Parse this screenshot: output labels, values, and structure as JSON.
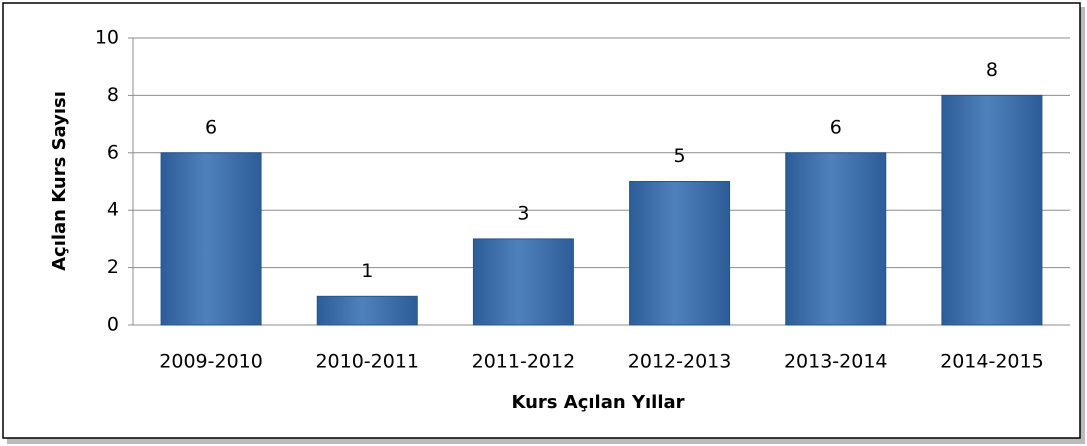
{
  "chart_data": {
    "type": "bar",
    "x_label": "Kurs Açılan Yıllar",
    "y_label": "Açılan Kurs Sayısı",
    "categories": [
      "2009-2010",
      "2010-2011",
      "2011-2012",
      "2012-2013",
      "2013-2014",
      "2014-2015"
    ],
    "values": [
      6,
      1,
      3,
      5,
      6,
      8
    ],
    "color": "#4f81bd",
    "ylim": [
      0,
      10
    ],
    "yticks": [
      0,
      2,
      4,
      6,
      8,
      10
    ],
    "grid": true
  }
}
